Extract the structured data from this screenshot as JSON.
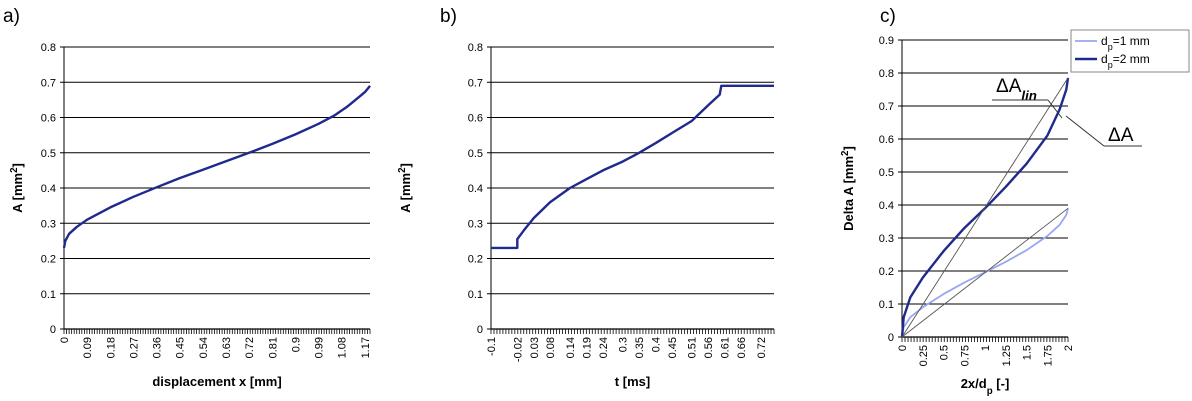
{
  "chart_data": [
    {
      "panel_label": "a)",
      "type": "line",
      "xlabel": "displacement  x [mm]",
      "ylabel": "A [mm2]",
      "ylim": [
        0,
        0.8
      ],
      "y_ticks": [
        "0",
        "0.1",
        "0.2",
        "0.3",
        "0.4",
        "0.5",
        "0.6",
        "0.7",
        "0.8"
      ],
      "x_ticks": [
        "0",
        "0.09",
        "0.18",
        "0.27",
        "0.36",
        "0.45",
        "0.54",
        "0.63",
        "0.72",
        "0.81",
        "0.9",
        "0.99",
        "1.08",
        "1.17"
      ],
      "grid": "horizontal",
      "series": [
        {
          "color": "#1f2a8c",
          "x": [
            0,
            0.005,
            0.02,
            0.05,
            0.09,
            0.18,
            0.27,
            0.36,
            0.45,
            0.54,
            0.63,
            0.72,
            0.81,
            0.9,
            0.99,
            1.05,
            1.1,
            1.15,
            1.17,
            1.185,
            1.19
          ],
          "y": [
            0.23,
            0.25,
            0.27,
            0.29,
            0.31,
            0.345,
            0.375,
            0.402,
            0.428,
            0.452,
            0.476,
            0.5,
            0.525,
            0.552,
            0.582,
            0.605,
            0.63,
            0.66,
            0.672,
            0.685,
            0.69
          ]
        }
      ]
    },
    {
      "panel_label": "b)",
      "type": "line",
      "xlabel": "t [ms]",
      "ylabel": "A [mm2]",
      "ylim": [
        0,
        0.8
      ],
      "y_ticks": [
        "0",
        "0.1",
        "0.2",
        "0.3",
        "0.4",
        "0.5",
        "0.6",
        "0.7",
        "0.8"
      ],
      "x_ticks": [
        "-0.1",
        "-0.02",
        "0.03",
        "0.08",
        "0.14",
        "0.19",
        "0.24",
        "0.3",
        "0.35",
        "0.4",
        "0.45",
        "0.51",
        "0.56",
        "0.61",
        "0.66",
        "0.72"
      ],
      "grid": "horizontal",
      "series": [
        {
          "color": "#1f2a8c",
          "x": [
            -0.1,
            -0.02,
            -0.02,
            0.0,
            0.03,
            0.08,
            0.14,
            0.19,
            0.24,
            0.3,
            0.35,
            0.4,
            0.45,
            0.51,
            0.56,
            0.595,
            0.6,
            0.61,
            0.66,
            0.72,
            0.76
          ],
          "y": [
            0.23,
            0.23,
            0.255,
            0.28,
            0.315,
            0.36,
            0.4,
            0.425,
            0.45,
            0.475,
            0.5,
            0.527,
            0.556,
            0.59,
            0.635,
            0.665,
            0.69,
            0.69,
            0.69,
            0.69,
            0.69
          ]
        }
      ]
    },
    {
      "panel_label": "c)",
      "type": "line",
      "xlabel": "2x/dp [-]",
      "ylabel": "Delta A [mm2]",
      "xlim": [
        0,
        2
      ],
      "ylim": [
        0,
        0.9
      ],
      "y_ticks": [
        "0",
        "0.1",
        "0.2",
        "0.3",
        "0.4",
        "0.5",
        "0.6",
        "0.7",
        "0.8",
        "0.9"
      ],
      "x_ticks": [
        "0",
        "0.25",
        "0.5",
        "0.75",
        "1",
        "1.25",
        "1.5",
        "1.75",
        "2"
      ],
      "grid": "horizontal",
      "legend": "top-right",
      "legend_entries": [
        "dp=1 mm",
        "dp=2 mm"
      ],
      "annotations": [
        "ΔA_lin",
        "ΔA"
      ],
      "series": [
        {
          "name": "dp=1 mm",
          "color": "#9aa6f0",
          "x": [
            0,
            0.02,
            0.1,
            0.25,
            0.5,
            0.75,
            1.0,
            1.25,
            1.5,
            1.75,
            1.9,
            1.98,
            2.0
          ],
          "y": [
            0,
            0.03,
            0.06,
            0.09,
            0.13,
            0.165,
            0.196,
            0.228,
            0.263,
            0.306,
            0.34,
            0.37,
            0.39
          ]
        },
        {
          "name": "dp=2 mm",
          "color": "#1f2a8c",
          "x": [
            0,
            0.02,
            0.1,
            0.25,
            0.5,
            0.75,
            1.0,
            1.25,
            1.5,
            1.75,
            1.9,
            1.98,
            2.0
          ],
          "y": [
            0,
            0.06,
            0.12,
            0.18,
            0.26,
            0.33,
            0.39,
            0.455,
            0.525,
            0.61,
            0.69,
            0.75,
            0.785
          ]
        },
        {
          "color": "#555555",
          "x": [
            0,
            2
          ],
          "y": [
            0,
            0.39
          ]
        },
        {
          "color": "#555555",
          "x": [
            0,
            2
          ],
          "y": [
            0,
            0.785
          ]
        }
      ]
    }
  ]
}
